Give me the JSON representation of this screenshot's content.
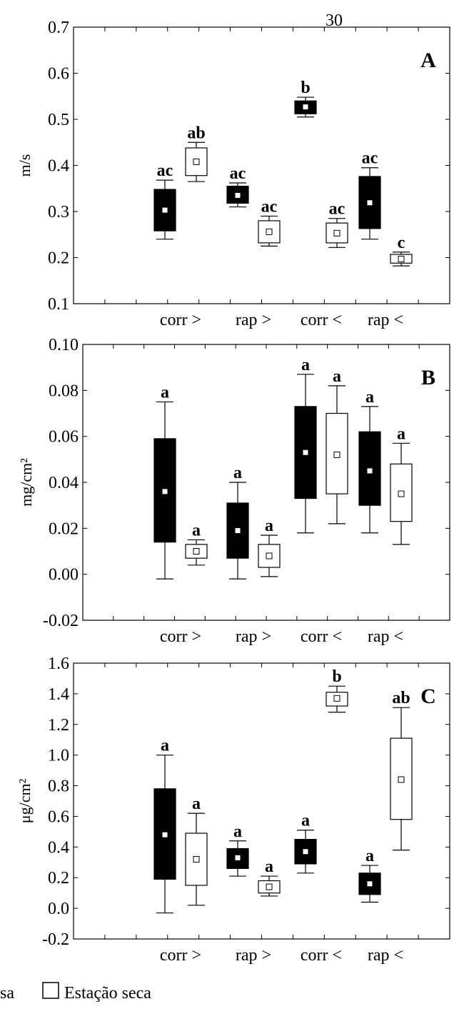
{
  "page_number": "30",
  "legend": {
    "items": [
      {
        "label": "sa",
        "fill": "#000000"
      },
      {
        "label": "Estação seca",
        "fill": "#ffffff"
      }
    ]
  },
  "chart_data": [
    {
      "type": "boxplot",
      "panel_label": "A",
      "ylabel": "m/s",
      "ylim": [
        0.1,
        0.7
      ],
      "yticks": [
        "0.1",
        "0.2",
        "0.3",
        "0.4",
        "0.5",
        "0.6",
        "0.7"
      ],
      "categories": [
        "corr >",
        "rap >",
        "corr <",
        "rap <"
      ],
      "boxes": [
        {
          "cat": 0,
          "side": "wet",
          "fill": "#000000",
          "min": 0.24,
          "q1": 0.258,
          "median": 0.303,
          "q3": 0.348,
          "max": 0.368,
          "sig": "ac"
        },
        {
          "cat": 0,
          "side": "dry",
          "fill": "#ffffff",
          "min": 0.365,
          "q1": 0.378,
          "median": 0.408,
          "q3": 0.438,
          "max": 0.45,
          "sig": "ab"
        },
        {
          "cat": 1,
          "side": "wet",
          "fill": "#000000",
          "min": 0.31,
          "q1": 0.318,
          "median": 0.335,
          "q3": 0.355,
          "max": 0.362,
          "sig": "ac"
        },
        {
          "cat": 1,
          "side": "dry",
          "fill": "#ffffff",
          "min": 0.225,
          "q1": 0.232,
          "median": 0.256,
          "q3": 0.28,
          "max": 0.29,
          "sig": "ac"
        },
        {
          "cat": 2,
          "side": "wet",
          "fill": "#000000",
          "min": 0.505,
          "q1": 0.512,
          "median": 0.527,
          "q3": 0.54,
          "max": 0.548,
          "sig": "b"
        },
        {
          "cat": 2,
          "side": "dry",
          "fill": "#ffffff",
          "min": 0.222,
          "q1": 0.232,
          "median": 0.253,
          "q3": 0.275,
          "max": 0.285,
          "sig": "ac"
        },
        {
          "cat": 3,
          "side": "wet",
          "fill": "#000000",
          "min": 0.24,
          "q1": 0.263,
          "median": 0.319,
          "q3": 0.376,
          "max": 0.395,
          "sig": "ac"
        },
        {
          "cat": 3,
          "side": "dry",
          "fill": "#ffffff",
          "min": 0.182,
          "q1": 0.188,
          "median": 0.197,
          "q3": 0.207,
          "max": 0.212,
          "sig": "c"
        }
      ]
    },
    {
      "type": "boxplot",
      "panel_label": "B",
      "ylabel": "mg/cm²",
      "ylim": [
        -0.02,
        0.1
      ],
      "yticks": [
        "-0.02",
        "0.00",
        "0.02",
        "0.04",
        "0.06",
        "0.08",
        "0.10"
      ],
      "categories": [
        "corr >",
        "rap >",
        "corr <",
        "rap <"
      ],
      "boxes": [
        {
          "cat": 0,
          "side": "wet",
          "fill": "#000000",
          "min": -0.002,
          "q1": 0.014,
          "median": 0.036,
          "q3": 0.059,
          "max": 0.075,
          "sig": "a"
        },
        {
          "cat": 0,
          "side": "dry",
          "fill": "#ffffff",
          "min": 0.004,
          "q1": 0.007,
          "median": 0.01,
          "q3": 0.013,
          "max": 0.015,
          "sig": "a"
        },
        {
          "cat": 1,
          "side": "wet",
          "fill": "#000000",
          "min": -0.002,
          "q1": 0.007,
          "median": 0.019,
          "q3": 0.031,
          "max": 0.04,
          "sig": "a"
        },
        {
          "cat": 1,
          "side": "dry",
          "fill": "#ffffff",
          "min": -0.001,
          "q1": 0.003,
          "median": 0.008,
          "q3": 0.013,
          "max": 0.017,
          "sig": "a"
        },
        {
          "cat": 2,
          "side": "wet",
          "fill": "#000000",
          "min": 0.018,
          "q1": 0.033,
          "median": 0.053,
          "q3": 0.073,
          "max": 0.087,
          "sig": "a"
        },
        {
          "cat": 2,
          "side": "dry",
          "fill": "#ffffff",
          "min": 0.022,
          "q1": 0.035,
          "median": 0.052,
          "q3": 0.07,
          "max": 0.082,
          "sig": "a"
        },
        {
          "cat": 3,
          "side": "wet",
          "fill": "#000000",
          "min": 0.018,
          "q1": 0.03,
          "median": 0.045,
          "q3": 0.062,
          "max": 0.073,
          "sig": "a"
        },
        {
          "cat": 3,
          "side": "dry",
          "fill": "#ffffff",
          "min": 0.013,
          "q1": 0.023,
          "median": 0.035,
          "q3": 0.048,
          "max": 0.057,
          "sig": "a"
        }
      ]
    },
    {
      "type": "boxplot",
      "panel_label": "C",
      "ylabel": "μg/cm²",
      "ylim": [
        -0.2,
        1.6
      ],
      "yticks": [
        "-0.2",
        "0.0",
        "0.2",
        "0.4",
        "0.6",
        "0.8",
        "1.0",
        "1.2",
        "1.4",
        "1.6"
      ],
      "categories": [
        "corr >",
        "rap >",
        "corr <",
        "rap <"
      ],
      "boxes": [
        {
          "cat": 0,
          "side": "wet",
          "fill": "#000000",
          "min": -0.03,
          "q1": 0.19,
          "median": 0.48,
          "q3": 0.78,
          "max": 1.0,
          "sig": "a"
        },
        {
          "cat": 0,
          "side": "dry",
          "fill": "#ffffff",
          "min": 0.02,
          "q1": 0.15,
          "median": 0.32,
          "q3": 0.49,
          "max": 0.62,
          "sig": "a"
        },
        {
          "cat": 1,
          "side": "wet",
          "fill": "#000000",
          "min": 0.21,
          "q1": 0.26,
          "median": 0.33,
          "q3": 0.39,
          "max": 0.44,
          "sig": "a"
        },
        {
          "cat": 1,
          "side": "dry",
          "fill": "#ffffff",
          "min": 0.08,
          "q1": 0.1,
          "median": 0.14,
          "q3": 0.18,
          "max": 0.21,
          "sig": "a"
        },
        {
          "cat": 2,
          "side": "wet",
          "fill": "#000000",
          "min": 0.23,
          "q1": 0.29,
          "median": 0.37,
          "q3": 0.45,
          "max": 0.51,
          "sig": "a"
        },
        {
          "cat": 2,
          "side": "dry",
          "fill": "#ffffff",
          "min": 1.28,
          "q1": 1.32,
          "median": 1.37,
          "q3": 1.41,
          "max": 1.45,
          "sig": "b"
        },
        {
          "cat": 3,
          "side": "wet",
          "fill": "#000000",
          "min": 0.04,
          "q1": 0.09,
          "median": 0.16,
          "q3": 0.23,
          "max": 0.28,
          "sig": "a"
        },
        {
          "cat": 3,
          "side": "dry",
          "fill": "#ffffff",
          "min": 0.38,
          "q1": 0.58,
          "median": 0.84,
          "q3": 1.11,
          "max": 1.31,
          "sig": "ab"
        }
      ]
    }
  ]
}
